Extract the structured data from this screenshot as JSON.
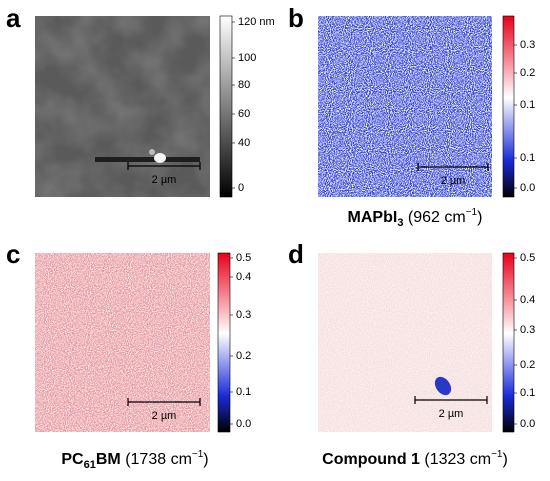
{
  "panels": [
    {
      "letter": "a",
      "scale_bar": "2 µm",
      "colorbar_ticks": [
        "120 nm",
        "100",
        "80",
        "60",
        "40",
        "0"
      ]
    },
    {
      "letter": "b",
      "scale_bar": "2 µm",
      "colorbar_ticks": [
        "0.3",
        "0.2",
        "0.1",
        "0.1",
        "0.0"
      ],
      "caption": {
        "bold": "MAPbI",
        "bold_sub": "3",
        "bold_after": "",
        "text": " (962 cm",
        "sup": "−1",
        "end": ")"
      }
    },
    {
      "letter": "c",
      "scale_bar": "2 µm",
      "colorbar_ticks": [
        "0.5",
        "0.4",
        "0.3",
        "0.2",
        "0.1",
        "0.0"
      ],
      "caption": {
        "bold": "PC",
        "bold_sub": "61",
        "bold_after": "BM",
        "text": " (1738 cm",
        "sup": "−1",
        "end": ")"
      }
    },
    {
      "letter": "d",
      "scale_bar": "2 µm",
      "colorbar_ticks": [
        "0.5",
        "0.4",
        "0.3",
        "0.2",
        "0.1",
        "0.0"
      ],
      "caption": {
        "bold": "Compound 1",
        "bold_sub": "",
        "bold_after": "",
        "text": " (1323 cm",
        "sup": "−1",
        "end": ")"
      }
    }
  ]
}
